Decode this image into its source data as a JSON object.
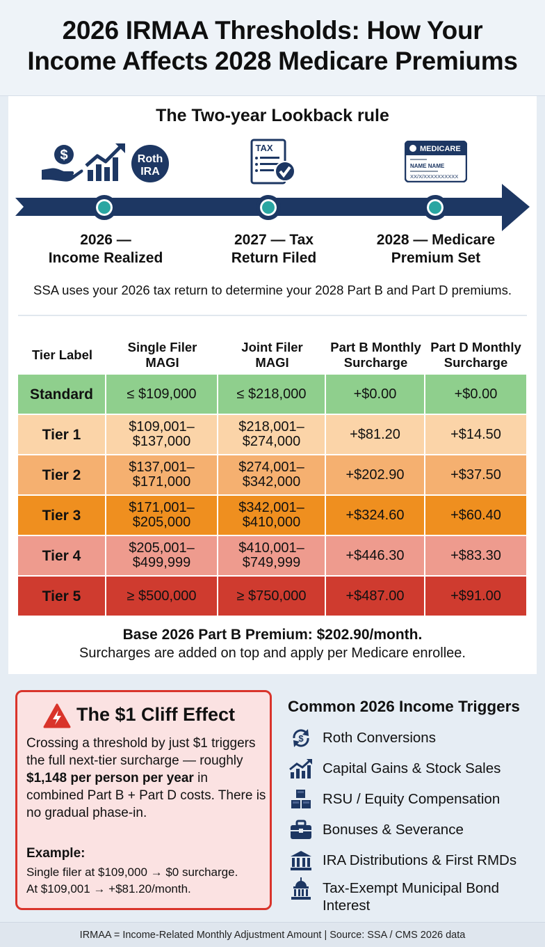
{
  "header": {
    "title_line1": "2026 IRMAA Thresholds: How Your",
    "title_line2": "Income Affects 2028 Medicare Premiums"
  },
  "lookback": {
    "title": "The Two-year Lookback rule",
    "icons": [
      "hand-dollar-icon",
      "growth-chart-icon",
      "roth-ira-icon",
      "tax-form-icon",
      "medicare-card-icon"
    ],
    "roth_badge_line1": "Roth",
    "roth_badge_line2": "IRA",
    "tax_form_label": "TAX",
    "medicare_card": {
      "brand": "MEDICARE",
      "name_label": "NAME NAME",
      "number": "XX/X/XXXXXXXXXX"
    },
    "phases": [
      {
        "line1": "2026 —",
        "line2": "Income Realized"
      },
      {
        "line1": "2027 — Tax",
        "line2": "Return Filed"
      },
      {
        "line1": "2028 — Medicare",
        "line2": "Premium Set"
      }
    ],
    "note": "SSA uses your 2026 tax return to determine your 2028 Part B and Part D premiums."
  },
  "table": {
    "headers": [
      {
        "line1": "Tier Label",
        "line2": ""
      },
      {
        "line1": "Single Filer",
        "line2": "MAGI"
      },
      {
        "line1": "Joint Filer",
        "line2": "MAGI"
      },
      {
        "line1": "Part B Monthly",
        "line2": "Surcharge"
      },
      {
        "line1": "Part D Monthly",
        "line2": "Surcharge"
      }
    ],
    "rows": [
      {
        "label": "Standard",
        "single_1": "≤ $109,000",
        "single_2": "",
        "joint_1": "≤ $218,000",
        "joint_2": "",
        "part_b": "+$0.00",
        "part_d": "+$0.00",
        "color": "#8fcf8d"
      },
      {
        "label": "Tier 1",
        "single_1": "$109,001–",
        "single_2": "$137,000",
        "joint_1": "$218,001–",
        "joint_2": "$274,000",
        "part_b": "+$81.20",
        "part_d": "+$14.50",
        "color": "#fbd4a8"
      },
      {
        "label": "Tier 2",
        "single_1": "$137,001–",
        "single_2": "$171,000",
        "joint_1": "$274,001–",
        "joint_2": "$342,000",
        "part_b": "+$202.90",
        "part_d": "+$37.50",
        "color": "#f5b070"
      },
      {
        "label": "Tier 3",
        "single_1": "$171,001–",
        "single_2": "$205,000",
        "joint_1": "$342,001–",
        "joint_2": "$410,000",
        "part_b": "+$324.60",
        "part_d": "+$60.40",
        "color": "#ef8f1f"
      },
      {
        "label": "Tier 4",
        "single_1": "$205,001–",
        "single_2": "$499,999",
        "joint_1": "$410,001–",
        "joint_2": "$749,999",
        "part_b": "+$446.30",
        "part_d": "+$83.30",
        "color": "#ee9b8e"
      },
      {
        "label": "Tier 5",
        "single_1": "≥ $500,000",
        "single_2": "",
        "joint_1": "≥ $750,000",
        "joint_2": "",
        "part_b": "+$487.00",
        "part_d": "+$91.00",
        "color": "#cf3b2f"
      }
    ],
    "base_note": "Base 2026 Part B Premium: $202.90/month.",
    "sub_note": "Surcharges are added on top and apply per Medicare enrollee."
  },
  "cliff": {
    "title": "The $1 Cliff Effect",
    "body_part1": "Crossing a threshold by just $1 triggers the full next-tier surcharge — roughly ",
    "body_bold": "$1,148 per person per year",
    "body_part2": " in combined Part B + Part D costs. There is no gradual phase-in.",
    "example_label": "Example:",
    "example_line1": "Single filer at $109,000 → $0 surcharge.",
    "example_line2": "At $109,001 → +$81.20/month."
  },
  "triggers": {
    "title": "Common 2026 Income Triggers",
    "items": [
      {
        "label": "Roth Conversions",
        "icon": "roth-conversion-icon"
      },
      {
        "label": "Capital Gains & Stock Sales",
        "icon": "capital-gains-icon"
      },
      {
        "label": "RSU / Equity Compensation",
        "icon": "equity-blocks-icon"
      },
      {
        "label": "Bonuses & Severance",
        "icon": "briefcase-icon"
      },
      {
        "label": "IRA Distributions & First RMDs",
        "icon": "bank-icon"
      },
      {
        "label": "Tax-Exempt Municipal Bond Interest",
        "icon": "municipal-building-icon"
      }
    ]
  },
  "footer": {
    "text": "IRMAA = Income-Related Monthly Adjustment Amount | Source: SSA / CMS 2026 data"
  },
  "colors": {
    "navy": "#1d3763",
    "teal": "#2aa6a2",
    "alert_red": "#d9342b"
  }
}
